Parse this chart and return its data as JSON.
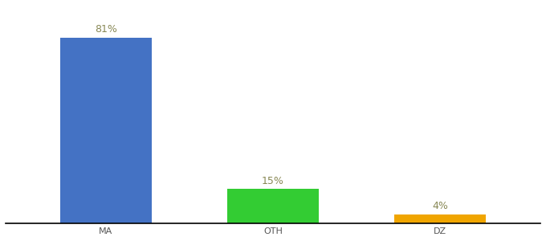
{
  "categories": [
    "MA",
    "OTH",
    "DZ"
  ],
  "values": [
    81,
    15,
    4
  ],
  "bar_colors": [
    "#4472c4",
    "#33cc33",
    "#f0a500"
  ],
  "label_texts": [
    "81%",
    "15%",
    "4%"
  ],
  "title": "",
  "label_fontsize": 9,
  "tick_fontsize": 8,
  "ylim": [
    0,
    95
  ],
  "background_color": "#ffffff",
  "bar_width": 0.55,
  "x_positions": [
    0,
    1,
    2
  ],
  "xlim": [
    -0.6,
    2.6
  ]
}
